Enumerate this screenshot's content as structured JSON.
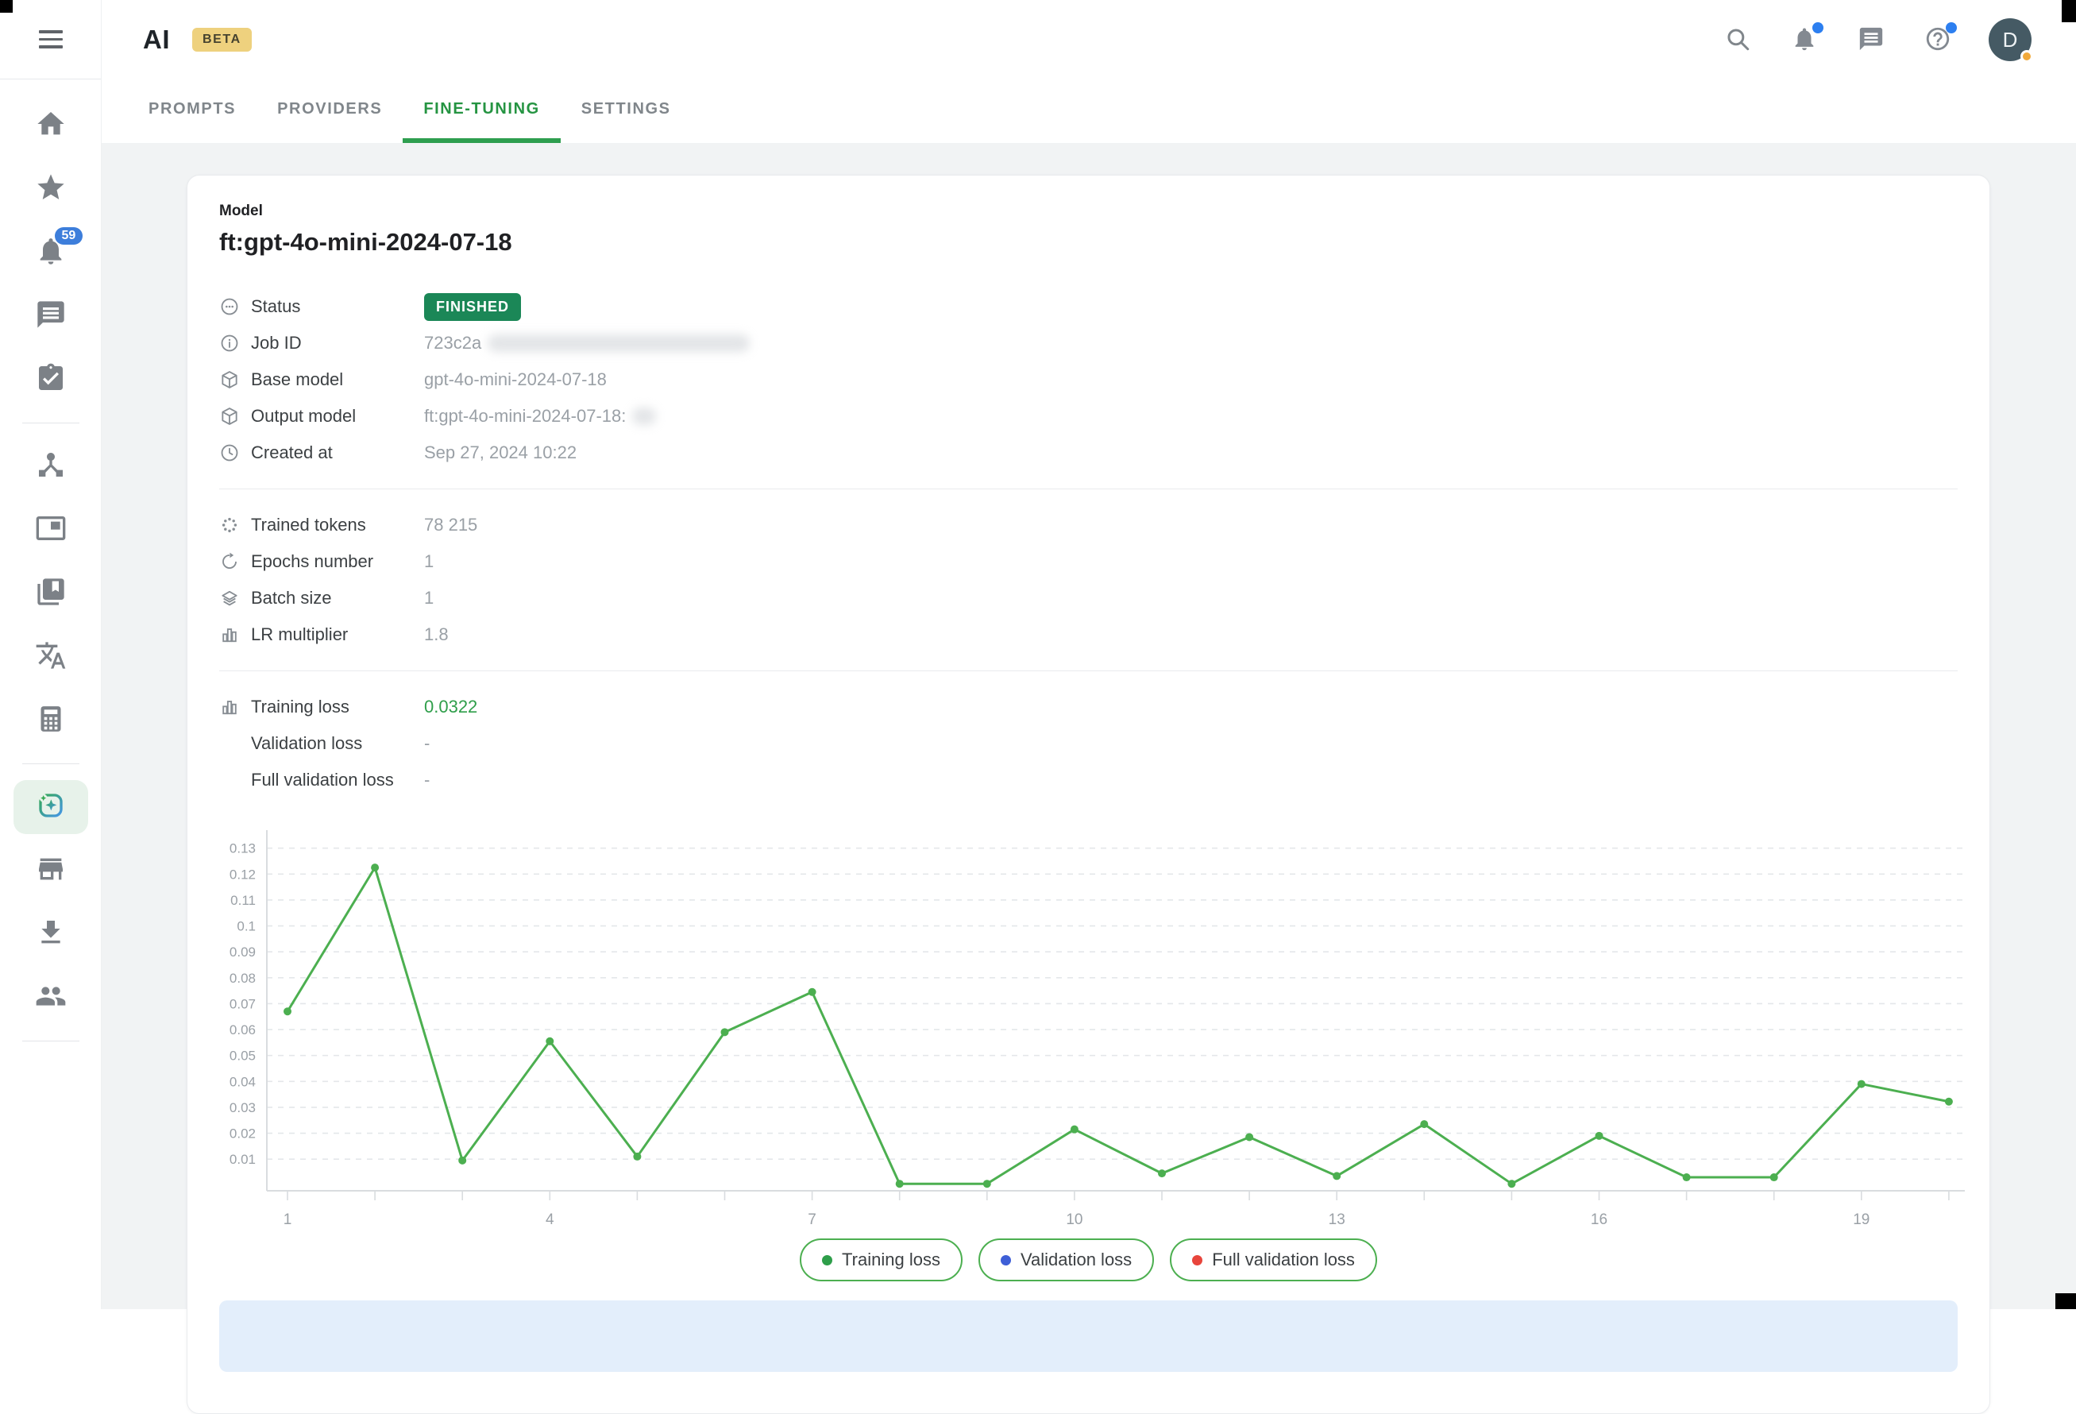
{
  "header": {
    "logo": "AI",
    "beta_badge": "BETA",
    "tabs": [
      {
        "label": "PROMPTS",
        "active": false
      },
      {
        "label": "PROVIDERS",
        "active": false
      },
      {
        "label": "FINE-TUNING",
        "active": true
      },
      {
        "label": "SETTINGS",
        "active": false
      }
    ],
    "avatar_initial": "D"
  },
  "sidebar": {
    "notifications_badge": "59",
    "items": [
      "home",
      "favorites",
      "notifications",
      "messages",
      "tasks",
      "workflows",
      "panels",
      "library",
      "translate",
      "calculator",
      "ai-fine-tuning",
      "store",
      "downloads",
      "people"
    ]
  },
  "model": {
    "section_label": "Model",
    "title": "ft:gpt-4o-mini-2024-07-18",
    "details": [
      {
        "label": "Status",
        "value": "FINISHED"
      },
      {
        "label": "Job ID",
        "value": "723c2a"
      },
      {
        "label": "Base model",
        "value": "gpt-4o-mini-2024-07-18"
      },
      {
        "label": "Output model",
        "value": "ft:gpt-4o-mini-2024-07-18:"
      },
      {
        "label": "Created at",
        "value": "Sep 27, 2024 10:22"
      }
    ],
    "params": [
      {
        "label": "Trained tokens",
        "value": "78 215"
      },
      {
        "label": "Epochs number",
        "value": "1"
      },
      {
        "label": "Batch size",
        "value": "1"
      },
      {
        "label": "LR multiplier",
        "value": "1.8"
      }
    ],
    "losses": [
      {
        "label": "Training loss",
        "value": "0.0322"
      },
      {
        "label": "Validation loss",
        "value": "-"
      },
      {
        "label": "Full validation loss",
        "value": "-"
      }
    ]
  },
  "legend": {
    "items": [
      {
        "label": "Training loss",
        "color": "#2e9e4a"
      },
      {
        "label": "Validation loss",
        "color": "#3e5fd7"
      },
      {
        "label": "Full validation loss",
        "color": "#e8453c"
      }
    ]
  },
  "chart_data": {
    "type": "line",
    "title": "",
    "x": [
      1,
      2,
      3,
      4,
      5,
      6,
      7,
      8,
      9,
      10,
      11,
      12,
      13,
      14,
      15,
      16,
      17,
      18,
      19,
      20
    ],
    "series": [
      {
        "name": "Training loss",
        "color": "#4caf50",
        "values": [
          0.067,
          0.1225,
          0.0095,
          0.0555,
          0.011,
          0.059,
          0.0745,
          0.0005,
          0.0005,
          0.0215,
          0.0045,
          0.0185,
          0.0035,
          0.0235,
          0.0005,
          0.019,
          0.003,
          0.003,
          0.039,
          0.0322
        ]
      }
    ],
    "xticks": [
      1,
      4,
      7,
      10,
      13,
      16,
      19
    ],
    "yticks": [
      0.01,
      0.02,
      0.03,
      0.04,
      0.05,
      0.06,
      0.07,
      0.08,
      0.09,
      0.1,
      0.11,
      0.12,
      0.13
    ],
    "ylim": [
      -0.0022,
      0.1345
    ],
    "grid": "horizontal-dashed",
    "legend_position": "bottom"
  },
  "colors": {
    "accent_green": "#259442",
    "status_badge_bg": "#1b8757",
    "footer_banner_bg": "#e3eefb"
  }
}
